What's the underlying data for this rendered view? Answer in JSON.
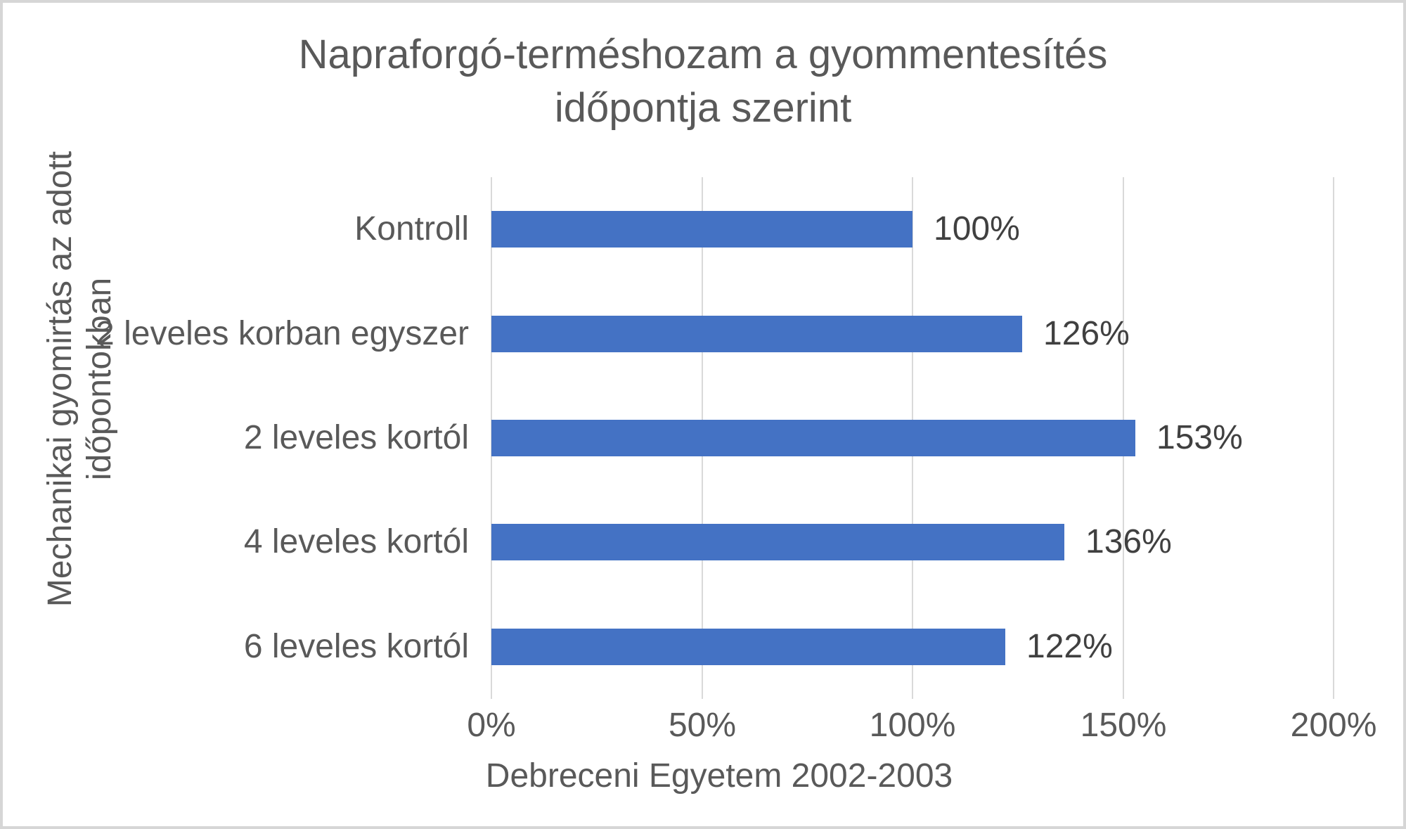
{
  "chart_data": {
    "type": "bar",
    "orientation": "horizontal",
    "title": "Napraforgó-terméshozam a gyommentesítés időpontja szerint",
    "title_line1": "Napraforgó-terméshozam a gyommentesítés",
    "title_line2": "időpontja szerint",
    "categories": [
      "Kontroll",
      "2 leveles korban egyszer",
      "2 leveles kortól",
      "4 leveles kortól",
      "6 leveles kortól"
    ],
    "values": [
      100,
      126,
      153,
      136,
      122
    ],
    "data_labels": [
      "100%",
      "126%",
      "153%",
      "136%",
      "122%"
    ],
    "x_ticks": [
      "0%",
      "50%",
      "100%",
      "150%",
      "200%"
    ],
    "xlim": [
      0,
      200
    ],
    "xlabel": "Debreceni Egyetem 2002-2003",
    "ylabel": "Mechanikai gyomirtás az adott időpontokban",
    "ylabel_line1": "Mechanikai gyomirtás az adott",
    "ylabel_line2": "időpontokban",
    "grid": true,
    "legend_position": "none",
    "colors": {
      "bar": "#4472C4",
      "gridline": "#D9D9D9",
      "title_text": "#595959",
      "axis_text": "#595959",
      "data_label_text": "#404040",
      "frame_border": "#D6D6D6"
    }
  }
}
